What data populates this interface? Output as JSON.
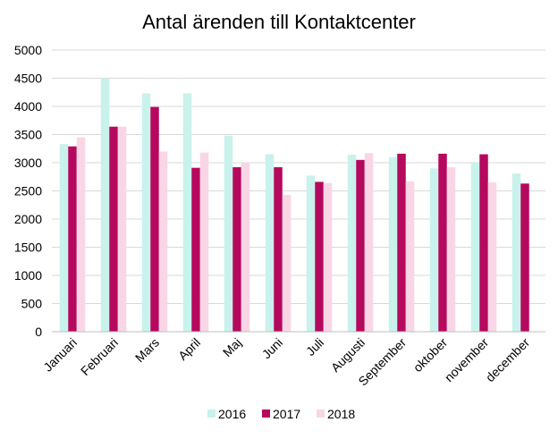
{
  "chart_data": {
    "type": "bar",
    "title": "Antal ärenden till Kontaktcenter",
    "xlabel": "",
    "ylabel": "",
    "ylim": [
      0,
      5000
    ],
    "yticks": [
      0,
      500,
      1000,
      1500,
      2000,
      2500,
      3000,
      3500,
      4000,
      4500,
      5000
    ],
    "grid": true,
    "legend_position": "bottom",
    "categories": [
      "Januari",
      "Februari",
      "Mars",
      "April",
      "Maj",
      "Juni",
      "Juli",
      "Augusti",
      "September",
      "oktober",
      "november",
      "december"
    ],
    "series": [
      {
        "name": "2016",
        "color": "#c9f2ec",
        "values": [
          3330,
          4500,
          4230,
          4230,
          3480,
          3150,
          2770,
          3140,
          3100,
          2900,
          3000,
          2810
        ]
      },
      {
        "name": "2017",
        "color": "#b5095e",
        "values": [
          3290,
          3640,
          3990,
          2910,
          2920,
          2920,
          2660,
          3050,
          3160,
          3160,
          3150,
          2630
        ]
      },
      {
        "name": "2018",
        "color": "#f9d6e6",
        "values": [
          3450,
          3640,
          3200,
          3180,
          3000,
          2430,
          2640,
          3170,
          2670,
          2920,
          2650,
          null
        ]
      }
    ]
  }
}
